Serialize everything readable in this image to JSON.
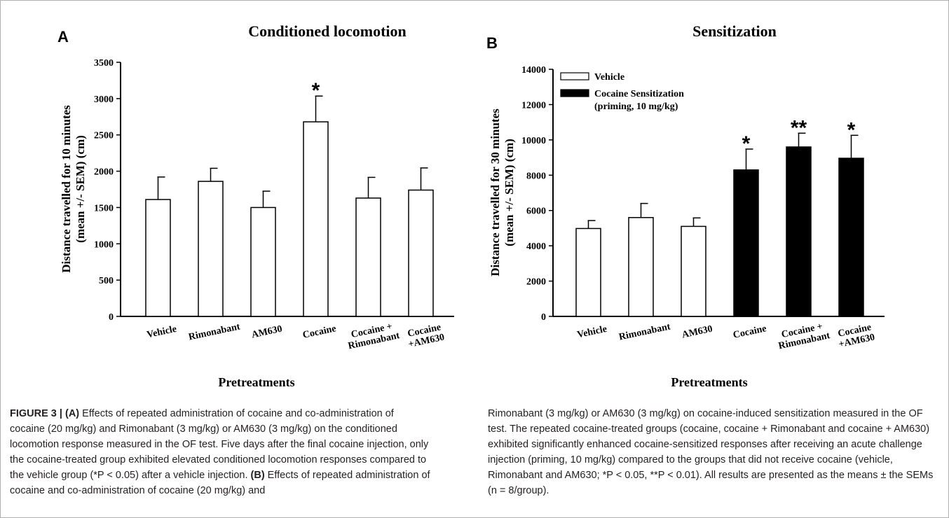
{
  "chart_data": [
    {
      "type": "bar",
      "panel_letter": "A",
      "title": "Conditioned locomotion",
      "xlabel": "Pretreatments",
      "ylabel_lines": [
        "Distance travelled for 10 minutes",
        "(mean +/- SEM) (cm)"
      ],
      "ylim": [
        0,
        3500
      ],
      "yticks": [
        0,
        500,
        1000,
        1500,
        2000,
        2500,
        3000,
        3500
      ],
      "categories": [
        [
          "Vehicle"
        ],
        [
          "Rimonabant"
        ],
        [
          "AM630"
        ],
        [
          "Cocaine"
        ],
        [
          "Cocaine +",
          "Rimonabant"
        ],
        [
          "Cocaine",
          "+AM630"
        ]
      ],
      "values": [
        1610,
        1860,
        1500,
        2680,
        1630,
        1740
      ],
      "errors": [
        310,
        180,
        225,
        355,
        285,
        305
      ],
      "fills": [
        "white",
        "white",
        "white",
        "white",
        "white",
        "white"
      ],
      "significance": [
        "",
        "",
        "",
        "*",
        "",
        ""
      ],
      "legend": null
    },
    {
      "type": "bar",
      "panel_letter": "B",
      "title": "Sensitization",
      "xlabel": "Pretreatments",
      "ylabel_lines": [
        "Distance travelled for 30 minutes",
        "(mean +/- SEM) (cm)"
      ],
      "ylim": [
        0,
        14000
      ],
      "yticks": [
        0,
        2000,
        4000,
        6000,
        8000,
        10000,
        12000,
        14000
      ],
      "categories": [
        [
          "Vehicle"
        ],
        [
          "Rimonabant"
        ],
        [
          "AM630"
        ],
        [
          "Cocaine"
        ],
        [
          "Cocaine +",
          "Rimonabant"
        ],
        [
          "Cocaine",
          "+AM630"
        ]
      ],
      "values": [
        4980,
        5600,
        5100,
        8300,
        9600,
        8960
      ],
      "errors": [
        450,
        800,
        480,
        1180,
        780,
        1300
      ],
      "fills": [
        "white",
        "white",
        "white",
        "black",
        "black",
        "black"
      ],
      "significance": [
        "",
        "",
        "",
        "*",
        "**",
        "*"
      ],
      "legend": {
        "placement": "top-left",
        "entries": [
          {
            "fill": "white",
            "label_lines": [
              "Vehicle"
            ]
          },
          {
            "fill": "black",
            "label_lines": [
              "Cocaine Sensitization",
              "(priming, 10 mg/kg)"
            ]
          }
        ]
      }
    }
  ],
  "caption": {
    "left": [
      {
        "text": "FIGURE 3 | ",
        "bold": true
      },
      {
        "text": "(A)",
        "bold": true
      },
      {
        "text": " Effects of repeated administration of cocaine and co-administration of cocaine (20 mg/kg) and Rimonabant (3 mg/kg) or AM630 (3 mg/kg) on the conditioned locomotion response measured in the OF test. Five days after the final cocaine injection, only the cocaine-treated group exhibited elevated conditioned locomotion responses compared to the vehicle group (*P < 0.05) after a vehicle injection. "
      },
      {
        "text": "(B)",
        "bold": true
      },
      {
        "text": " Effects of repeated administration of cocaine and co-administration of cocaine (20 mg/kg) and"
      }
    ],
    "right": [
      {
        "text": "Rimonabant (3 mg/kg) or AM630 (3 mg/kg) on cocaine-induced sensitization measured in the OF test. The repeated cocaine-treated groups (cocaine, cocaine + Rimonabant and cocaine + AM630) exhibited significantly enhanced cocaine-sensitized responses after receiving an acute challenge injection (priming, 10 mg/kg) compared to the groups that did not receive cocaine (vehicle, Rimonabant and AM630; *P < 0.05, **P < 0.01). All results are presented as the means ± the SEMs (n = 8/group)."
      }
    ]
  }
}
